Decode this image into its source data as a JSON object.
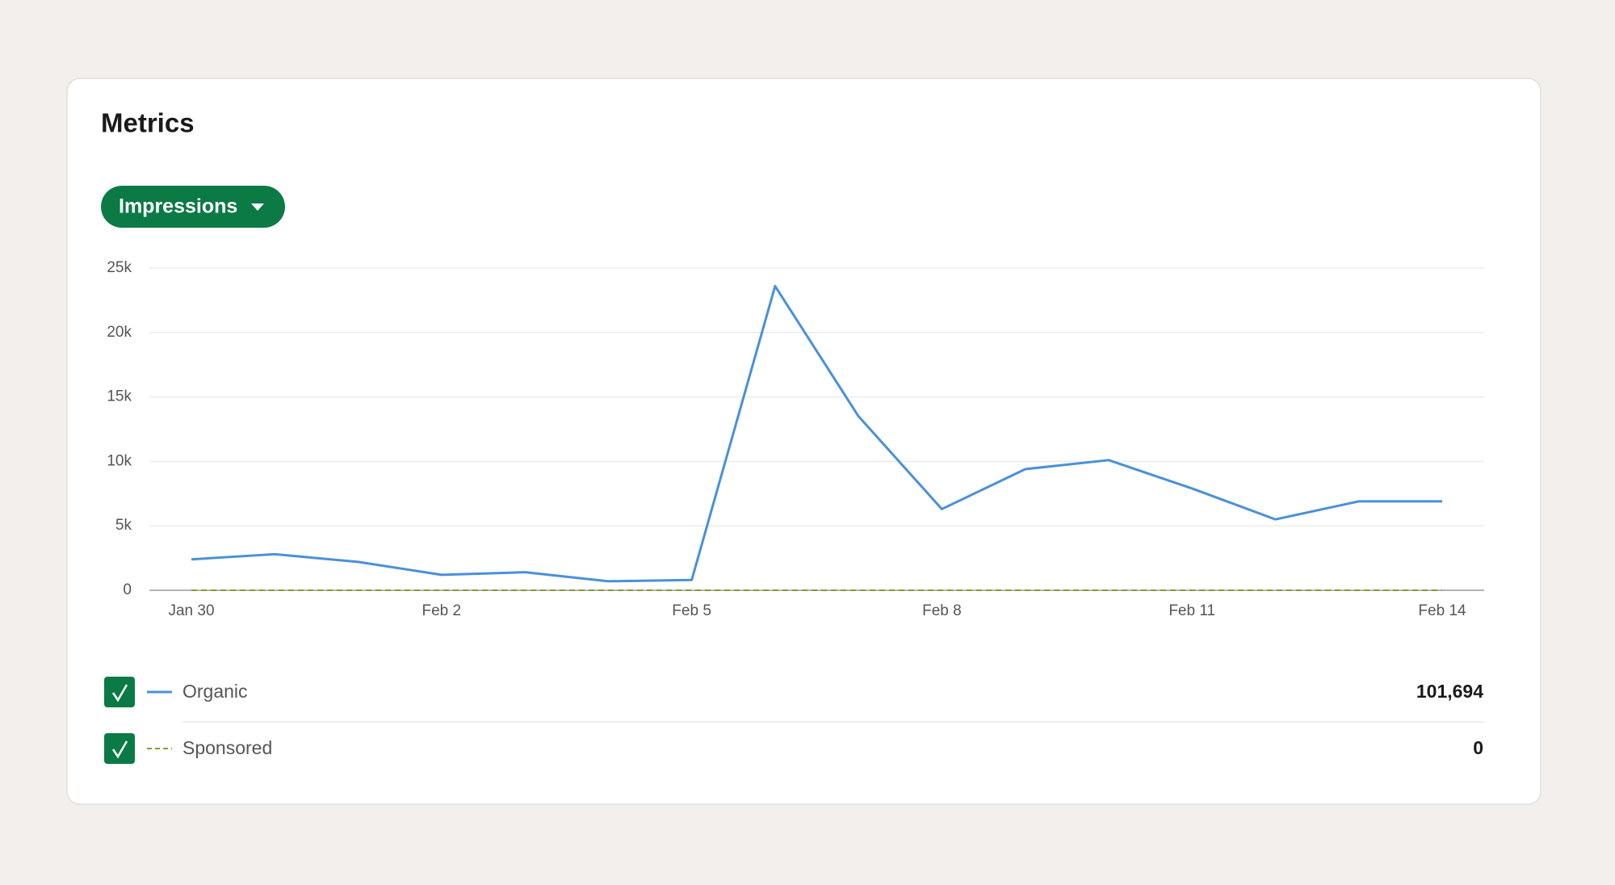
{
  "title": "Metrics",
  "dropdown": "Impressions",
  "chart_data": {
    "type": "line",
    "categories": [
      "Jan 30",
      null,
      null,
      "Feb 2",
      null,
      null,
      "Feb 5",
      null,
      null,
      "Feb 8",
      null,
      null,
      "Feb 11",
      null,
      null,
      "Feb 14"
    ],
    "series": [
      {
        "name": "Organic",
        "color": "#4a90d9",
        "line_style": "solid",
        "values": [
          2400,
          2800,
          2200,
          1200,
          1400,
          700,
          800,
          23600,
          13500,
          6300,
          9400,
          10100,
          7900,
          5500,
          6900,
          6900
        ]
      },
      {
        "name": "Sponsored",
        "color": "#8a9a2c",
        "line_style": "dashed",
        "values": [
          0,
          0,
          0,
          0,
          0,
          0,
          0,
          0,
          0,
          0,
          0,
          0,
          0,
          0,
          0,
          0
        ]
      }
    ],
    "ylim": [
      0,
      25000
    ],
    "yticks": [
      0,
      {
        "value": 5000,
        "label": "5k"
      },
      {
        "value": 10000,
        "label": "10k"
      },
      {
        "value": 15000,
        "label": "15k"
      },
      {
        "value": 20000,
        "label": "20k"
      },
      {
        "value": 25000,
        "label": "25k"
      }
    ],
    "grid": true
  },
  "totals": [
    {
      "value": 101694,
      "label": "101,694"
    },
    0
  ]
}
